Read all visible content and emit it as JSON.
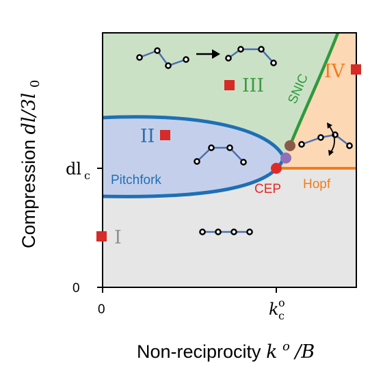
{
  "axes": {
    "x_label_text": "Non-reciprocity ",
    "x_label_math": "k",
    "x_label_math_sup": "o",
    "x_label_math_tail": "/B",
    "y_label_text": "Compression ",
    "y_label_math": "dl/3l",
    "y_label_math_sub": "0",
    "x_ticks": {
      "zero": "0",
      "kc_main": "k",
      "kc_sup": "o",
      "kc_sub": "c"
    },
    "y_ticks": {
      "zero": "0",
      "dlc_main": "dl",
      "dlc_sub": "c"
    }
  },
  "regions": {
    "I": "I",
    "II": "II",
    "III": "III",
    "IV": "IV"
  },
  "curve_labels": {
    "pitchfork": "Pitchfork",
    "snic": "SNIC",
    "hopf": "Hopf",
    "cep": "CEP"
  },
  "colors": {
    "region_I": "#e6e6e6",
    "region_II": "#c4d0eb",
    "region_III": "#cbe1c6",
    "region_IV": "#fdd8b5",
    "pitchfork": "#1f6fb5",
    "snic": "#2e9a3c",
    "hopf": "#f07d1b",
    "cep": "#e02a26",
    "marker": "#d62b27",
    "chain": "#4a6fb0",
    "label_I": "#909090",
    "label_II": "#2d6cb0",
    "label_III": "#3b9a42",
    "label_IV": "#f07d1b",
    "dot_brown": "#8a5a48",
    "dot_purple": "#9170b8"
  }
}
